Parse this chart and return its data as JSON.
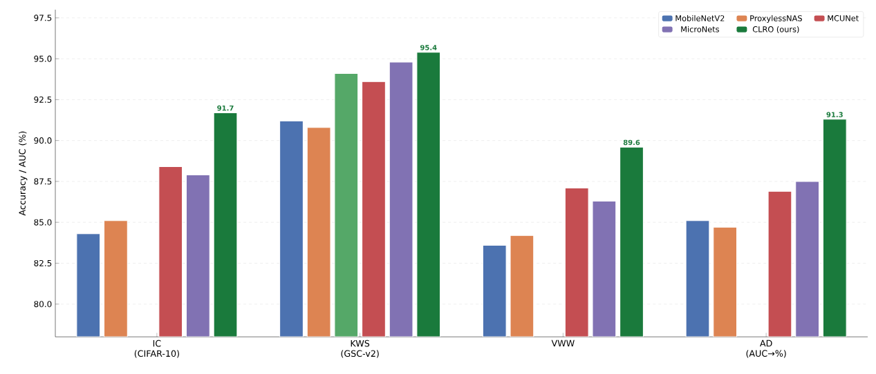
{
  "chart_data": {
    "type": "bar",
    "ylabel": "Accuracy / AUC (%)",
    "categories": [
      "IC (CIFAR-10)",
      "KWS (GSC-v2)",
      "VWW",
      "AD (AUC→%)"
    ],
    "series": [
      {
        "name": "MobileNetV2",
        "color": "#4c72b0",
        "values": [
          84.3,
          91.2,
          83.6,
          85.1
        ]
      },
      {
        "name": "ProxylessNAS",
        "color": "#dd8452",
        "values": [
          85.1,
          90.8,
          84.2,
          84.7
        ]
      },
      {
        "color": "#55a868",
        "values": [
          null,
          94.1,
          null,
          null
        ]
      },
      {
        "name": "MCUNet",
        "color": "#c44e52",
        "values": [
          88.4,
          93.6,
          87.1,
          86.9
        ]
      },
      {
        "name": "MicroNets",
        "color": "#8172b3",
        "values": [
          87.9,
          94.8,
          86.3,
          87.5
        ]
      },
      {
        "name": "CLRO (ours)",
        "color": "#1a7a3c",
        "values": [
          91.7,
          95.4,
          89.6,
          91.3
        ],
        "value_labels": [
          "91.7",
          "95.4",
          "89.6",
          "91.3"
        ]
      }
    ],
    "ylim": [
      78,
      98
    ],
    "yticks": [
      {
        "value": 80,
        "label": "80.0"
      },
      {
        "value": 82.5,
        "label": "82.5"
      },
      {
        "value": 85,
        "label": "85.0"
      },
      {
        "value": 87.5,
        "label": "87.5"
      },
      {
        "value": 90,
        "label": "90.0"
      },
      {
        "value": 92.5,
        "label": "92.5"
      },
      {
        "value": 95,
        "label": "95.0"
      },
      {
        "value": 97.5,
        "label": "97.5"
      }
    ],
    "grid": "y",
    "legend": "top right"
  }
}
